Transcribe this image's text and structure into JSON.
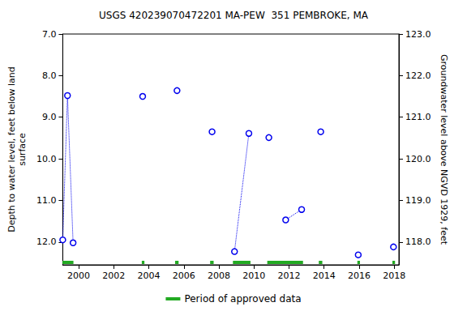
{
  "chart_data": {
    "type": "line",
    "title": "USGS 420239070472201 MA-PEW  351 PEMBROKE, MA",
    "y_label": "Depth to water level, feet below land\nsurface",
    "y2_label": "Groundwater level above NGVD 1929, feet",
    "xlim": [
      1999.09,
      2018.27
    ],
    "xticks": [
      2000,
      2002,
      2004,
      2006,
      2008,
      2010,
      2012,
      2014,
      2016,
      2018
    ],
    "ylim": [
      7,
      12.55
    ],
    "yticks": [
      {
        "value": 7,
        "label": "7.0"
      },
      {
        "value": 8,
        "label": "8.0"
      },
      {
        "value": 9,
        "label": "9.0"
      },
      {
        "value": 10,
        "label": "10.0"
      },
      {
        "value": 11,
        "label": "11.0"
      },
      {
        "value": 12,
        "label": "12.0"
      }
    ],
    "y2lim": [
      117.45,
      123
    ],
    "y2ticks": [
      {
        "value": 118,
        "label": "118.0"
      },
      {
        "value": 119,
        "label": "119.0"
      },
      {
        "value": 120,
        "label": "120.0"
      },
      {
        "value": 121,
        "label": "121.0"
      },
      {
        "value": 122,
        "label": "122.0"
      },
      {
        "value": 123,
        "label": "123.0"
      }
    ],
    "grid": false,
    "legend": "bottom",
    "series": [
      {
        "color": "#0000ee",
        "marker": "circle",
        "line_style": "dotted",
        "x": [
          1999.09,
          1999.36,
          1999.68
        ],
        "values": [
          11.95,
          8.48,
          12.02
        ]
      },
      {
        "color": "#0000ee",
        "marker": "circle",
        "line_style": "dotted",
        "x": [
          2003.65
        ],
        "values": [
          8.5
        ]
      },
      {
        "color": "#0000ee",
        "marker": "circle",
        "line_style": "dotted",
        "x": [
          2005.61
        ],
        "values": [
          8.36
        ]
      },
      {
        "color": "#0000ee",
        "marker": "circle",
        "line_style": "dotted",
        "x": [
          2007.61
        ],
        "values": [
          9.35
        ]
      },
      {
        "color": "#0000ee",
        "marker": "circle",
        "line_style": "dotted",
        "x": [
          2008.89,
          2009.71
        ],
        "values": [
          12.23,
          9.39
        ]
      },
      {
        "color": "#0000ee",
        "marker": "circle",
        "line_style": "dotted",
        "x": [
          2010.85
        ],
        "values": [
          9.49
        ]
      },
      {
        "color": "#0000ee",
        "marker": "circle",
        "line_style": "dotted",
        "x": [
          2011.81,
          2012.72
        ],
        "values": [
          11.47,
          11.22
        ]
      },
      {
        "color": "#0000ee",
        "marker": "circle",
        "line_style": "dotted",
        "x": [
          2013.81
        ],
        "values": [
          9.35
        ]
      },
      {
        "color": "#0000ee",
        "marker": "circle",
        "line_style": "dotted",
        "x": [
          2015.95
        ],
        "values": [
          12.31
        ]
      },
      {
        "color": "#0000ee",
        "marker": "circle",
        "line_style": "dotted",
        "x": [
          2017.96
        ],
        "values": [
          12.12
        ]
      }
    ],
    "approved_periods": {
      "name": "Period of approved data",
      "color": "#22aa22",
      "ranges": [
        [
          1999.05,
          1999.7
        ],
        [
          2003.6,
          2003.75
        ],
        [
          2005.5,
          2005.7
        ],
        [
          2007.5,
          2007.7
        ],
        [
          2008.8,
          2009.8
        ],
        [
          2010.76,
          2012.8
        ],
        [
          2013.7,
          2013.9
        ],
        [
          2015.9,
          2016.05
        ],
        [
          2017.9,
          2018.05
        ]
      ]
    }
  }
}
